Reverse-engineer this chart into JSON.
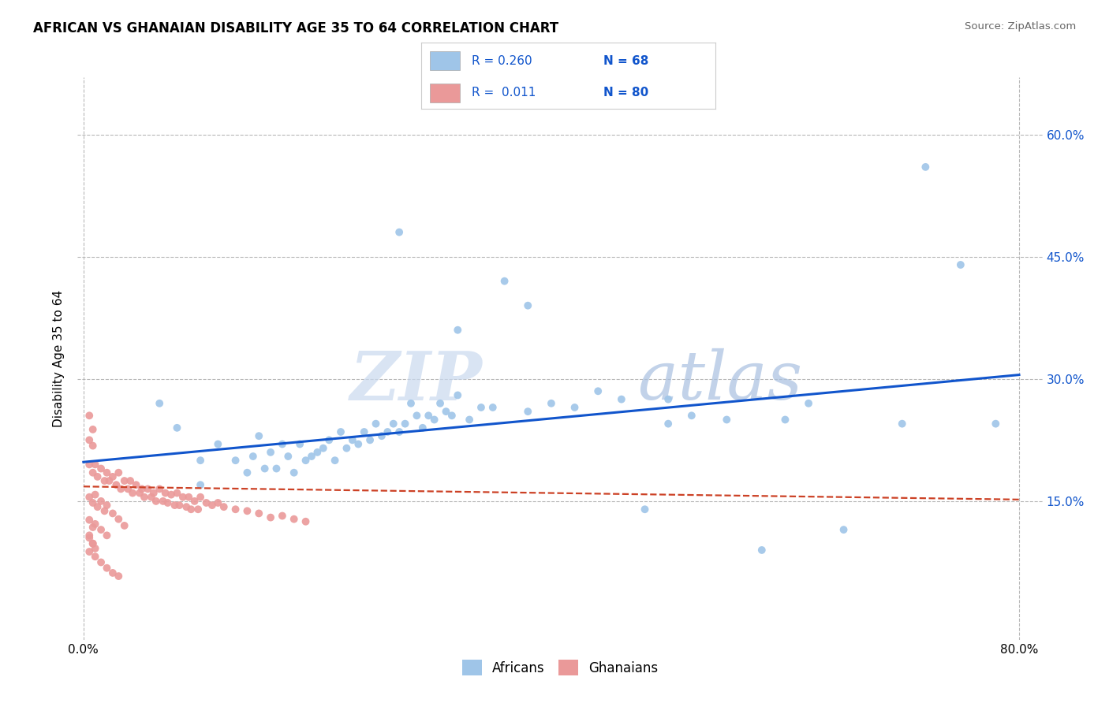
{
  "title": "AFRICAN VS GHANAIAN DISABILITY AGE 35 TO 64 CORRELATION CHART",
  "source": "Source: ZipAtlas.com",
  "ylabel_label": "Disability Age 35 to 64",
  "xlim": [
    -0.005,
    0.82
  ],
  "ylim": [
    -0.02,
    0.67
  ],
  "ytick_positions": [
    0.15,
    0.3,
    0.45,
    0.6
  ],
  "ytick_labels": [
    "15.0%",
    "30.0%",
    "45.0%",
    "60.0%"
  ],
  "african_color": "#9fc5e8",
  "ghanaian_color": "#ea9999",
  "african_line_color": "#1155cc",
  "ghanaian_line_color": "#cc4125",
  "watermark_zip": "ZIP",
  "watermark_atlas": "atlas",
  "background_color": "#ffffff",
  "grid_color": "#b7b7b7",
  "african_trend_x": [
    0.0,
    0.8
  ],
  "african_trend_y": [
    0.198,
    0.305
  ],
  "ghanaian_trend_x": [
    0.0,
    0.8
  ],
  "ghanaian_trend_y": [
    0.168,
    0.152
  ],
  "africans_x": [
    0.065,
    0.08,
    0.1,
    0.1,
    0.115,
    0.13,
    0.14,
    0.145,
    0.15,
    0.155,
    0.16,
    0.165,
    0.17,
    0.175,
    0.18,
    0.185,
    0.19,
    0.195,
    0.2,
    0.205,
    0.21,
    0.215,
    0.22,
    0.225,
    0.23,
    0.235,
    0.24,
    0.245,
    0.25,
    0.255,
    0.26,
    0.265,
    0.27,
    0.275,
    0.28,
    0.285,
    0.29,
    0.295,
    0.3,
    0.305,
    0.31,
    0.315,
    0.32,
    0.33,
    0.34,
    0.35,
    0.36,
    0.38,
    0.4,
    0.42,
    0.44,
    0.46,
    0.48,
    0.5,
    0.52,
    0.55,
    0.58,
    0.6,
    0.65,
    0.7,
    0.72,
    0.75,
    0.78,
    0.27,
    0.32,
    0.38,
    0.5,
    0.62
  ],
  "africans_y": [
    0.27,
    0.24,
    0.17,
    0.2,
    0.22,
    0.2,
    0.185,
    0.205,
    0.23,
    0.19,
    0.21,
    0.19,
    0.22,
    0.205,
    0.185,
    0.22,
    0.2,
    0.205,
    0.21,
    0.215,
    0.225,
    0.2,
    0.235,
    0.215,
    0.225,
    0.22,
    0.235,
    0.225,
    0.245,
    0.23,
    0.235,
    0.245,
    0.235,
    0.245,
    0.27,
    0.255,
    0.24,
    0.255,
    0.25,
    0.27,
    0.26,
    0.255,
    0.28,
    0.25,
    0.265,
    0.265,
    0.42,
    0.26,
    0.27,
    0.265,
    0.285,
    0.275,
    0.14,
    0.275,
    0.255,
    0.25,
    0.09,
    0.25,
    0.115,
    0.245,
    0.56,
    0.44,
    0.245,
    0.48,
    0.36,
    0.39,
    0.245,
    0.27
  ],
  "ghanaians_x": [
    0.005,
    0.008,
    0.01,
    0.012,
    0.015,
    0.018,
    0.02,
    0.022,
    0.025,
    0.028,
    0.03,
    0.032,
    0.035,
    0.038,
    0.04,
    0.042,
    0.045,
    0.048,
    0.05,
    0.052,
    0.055,
    0.058,
    0.06,
    0.062,
    0.065,
    0.068,
    0.07,
    0.072,
    0.075,
    0.078,
    0.08,
    0.082,
    0.085,
    0.088,
    0.09,
    0.092,
    0.095,
    0.098,
    0.1,
    0.105,
    0.11,
    0.115,
    0.12,
    0.13,
    0.14,
    0.15,
    0.16,
    0.17,
    0.18,
    0.19,
    0.005,
    0.008,
    0.01,
    0.012,
    0.015,
    0.018,
    0.02,
    0.025,
    0.03,
    0.035,
    0.005,
    0.008,
    0.01,
    0.015,
    0.02,
    0.005,
    0.008,
    0.01,
    0.005,
    0.008,
    0.005,
    0.008,
    0.005,
    0.008,
    0.005,
    0.01,
    0.015,
    0.02,
    0.025,
    0.03
  ],
  "ghanaians_y": [
    0.195,
    0.185,
    0.195,
    0.18,
    0.19,
    0.175,
    0.185,
    0.175,
    0.18,
    0.17,
    0.185,
    0.165,
    0.175,
    0.165,
    0.175,
    0.16,
    0.17,
    0.16,
    0.165,
    0.155,
    0.165,
    0.155,
    0.16,
    0.15,
    0.165,
    0.15,
    0.16,
    0.148,
    0.158,
    0.145,
    0.16,
    0.145,
    0.155,
    0.143,
    0.155,
    0.14,
    0.15,
    0.14,
    0.155,
    0.148,
    0.145,
    0.148,
    0.143,
    0.14,
    0.138,
    0.135,
    0.13,
    0.132,
    0.128,
    0.125,
    0.155,
    0.148,
    0.158,
    0.143,
    0.15,
    0.138,
    0.145,
    0.135,
    0.128,
    0.12,
    0.127,
    0.118,
    0.122,
    0.115,
    0.108,
    0.105,
    0.098,
    0.092,
    0.255,
    0.238,
    0.225,
    0.218,
    0.108,
    0.098,
    0.088,
    0.082,
    0.075,
    0.068,
    0.062,
    0.058
  ]
}
